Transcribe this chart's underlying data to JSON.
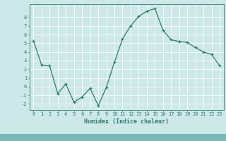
{
  "x": [
    0,
    1,
    2,
    3,
    4,
    5,
    6,
    7,
    8,
    9,
    10,
    11,
    12,
    13,
    14,
    15,
    16,
    17,
    18,
    19,
    20,
    21,
    22,
    23
  ],
  "y": [
    5.3,
    2.5,
    2.4,
    -0.8,
    0.3,
    -1.8,
    -1.2,
    -0.2,
    -2.2,
    -0.1,
    2.8,
    5.5,
    7.0,
    8.1,
    8.7,
    9.0,
    6.5,
    5.4,
    5.2,
    5.1,
    4.5,
    4.0,
    3.7,
    2.4
  ],
  "xlabel": "Humidex (Indice chaleur)",
  "ylim": [
    -2.7,
    9.5
  ],
  "xlim": [
    -0.5,
    23.5
  ],
  "yticks": [
    -2,
    -1,
    0,
    1,
    2,
    3,
    4,
    5,
    6,
    7,
    8
  ],
  "xticks": [
    0,
    1,
    2,
    3,
    4,
    5,
    6,
    7,
    8,
    9,
    10,
    11,
    12,
    13,
    14,
    15,
    16,
    17,
    18,
    19,
    20,
    21,
    22,
    23
  ],
  "line_color": "#2e7d6e",
  "marker_color": "#2e7d6e",
  "bg_color": "#cce8e8",
  "grid_color": "#ffffff",
  "axis_color": "#2e7d6e",
  "xlabel_color": "#2e7d6e",
  "tick_color": "#2e7d6e",
  "bottom_bar_color": "#7ab8b8"
}
